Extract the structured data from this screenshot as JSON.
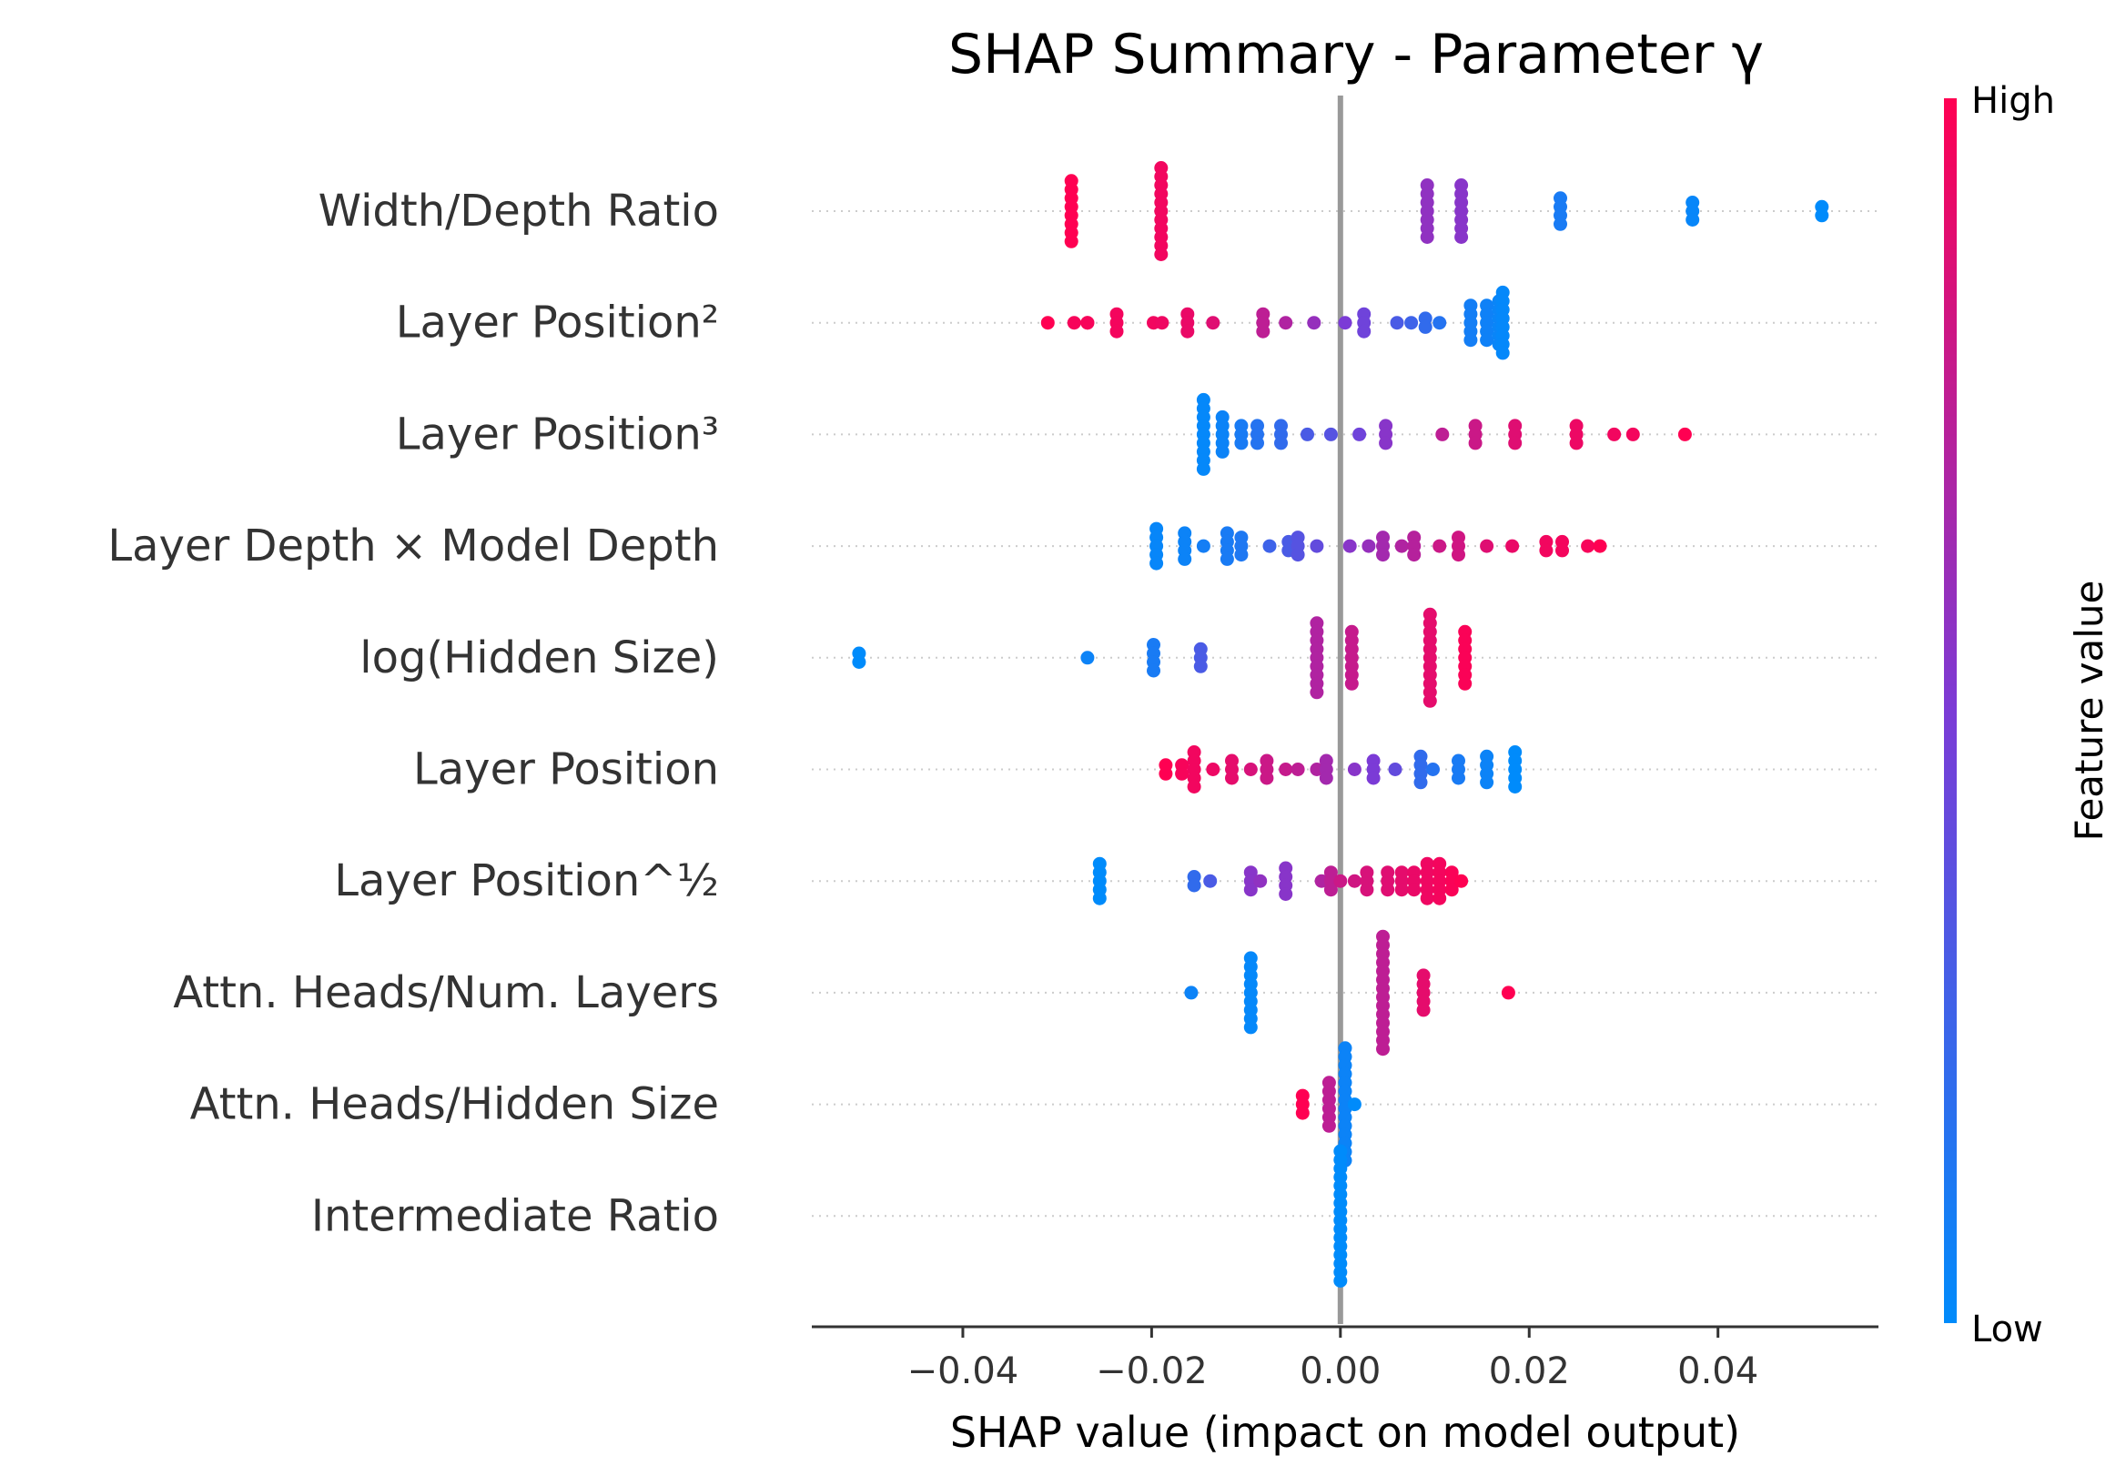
{
  "chart_data": {
    "type": "scatter",
    "title": "SHAP Summary - Parameter γ",
    "xlabel": "SHAP value (impact on model output)",
    "xlim": [
      -0.056,
      0.057
    ],
    "xticks": [
      {
        "value": -0.04,
        "label": "−0.04"
      },
      {
        "value": -0.02,
        "label": "−0.02"
      },
      {
        "value": 0.0,
        "label": "0.00"
      },
      {
        "value": 0.02,
        "label": "0.02"
      },
      {
        "value": 0.04,
        "label": "0.04"
      }
    ],
    "colorbar": {
      "label": "Feature value",
      "high": "High",
      "low": "Low",
      "color_low": "#008bfb",
      "color_high": "#ff0052"
    },
    "zero_line_color": "#999999",
    "features": [
      {
        "name": "Width/Depth Ratio",
        "points": [
          {
            "x": -0.0285,
            "v": 1.0,
            "n": 8
          },
          {
            "x": -0.019,
            "v": 0.95,
            "n": 11
          },
          {
            "x": 0.0092,
            "v": 0.58,
            "n": 7
          },
          {
            "x": 0.0128,
            "v": 0.55,
            "n": 7
          },
          {
            "x": 0.0233,
            "v": 0.1,
            "n": 4
          },
          {
            "x": 0.0373,
            "v": 0.03,
            "n": 3
          },
          {
            "x": 0.051,
            "v": 0.0,
            "n": 2
          }
        ]
      },
      {
        "name": "Layer Position²",
        "points": [
          {
            "x": -0.031,
            "v": 1.0
          },
          {
            "x": -0.0282,
            "v": 0.97
          },
          {
            "x": -0.0268,
            "v": 0.98
          },
          {
            "x": -0.0268,
            "v": 0.97
          },
          {
            "x": -0.0237,
            "v": 0.96,
            "n": 3
          },
          {
            "x": -0.0198,
            "v": 0.95
          },
          {
            "x": -0.0189,
            "v": 0.94
          },
          {
            "x": -0.0162,
            "v": 0.92,
            "n": 3
          },
          {
            "x": -0.0135,
            "v": 0.88
          },
          {
            "x": -0.0082,
            "v": 0.75,
            "n": 3
          },
          {
            "x": -0.0058,
            "v": 0.7
          },
          {
            "x": -0.0028,
            "v": 0.6
          },
          {
            "x": 0.0005,
            "v": 0.5
          },
          {
            "x": 0.0025,
            "v": 0.45,
            "n": 3
          },
          {
            "x": 0.006,
            "v": 0.3
          },
          {
            "x": 0.0075,
            "v": 0.25
          },
          {
            "x": 0.009,
            "v": 0.2,
            "n": 2
          },
          {
            "x": 0.0105,
            "v": 0.15
          },
          {
            "x": 0.0138,
            "v": 0.08,
            "n": 5
          },
          {
            "x": 0.0155,
            "v": 0.06,
            "n": 5
          },
          {
            "x": 0.0168,
            "v": 0.04,
            "n": 6
          },
          {
            "x": 0.0172,
            "v": 0.02,
            "n": 8
          }
        ]
      },
      {
        "name": "Layer Position³",
        "points": [
          {
            "x": -0.0145,
            "v": 0.02,
            "n": 9
          },
          {
            "x": -0.0125,
            "v": 0.05,
            "n": 5
          },
          {
            "x": -0.0105,
            "v": 0.1,
            "n": 3
          },
          {
            "x": -0.0088,
            "v": 0.15,
            "n": 3
          },
          {
            "x": -0.0063,
            "v": 0.2,
            "n": 3
          },
          {
            "x": -0.0035,
            "v": 0.3
          },
          {
            "x": -0.001,
            "v": 0.35
          },
          {
            "x": 0.002,
            "v": 0.45
          },
          {
            "x": 0.0048,
            "v": 0.55,
            "n": 3
          },
          {
            "x": 0.0108,
            "v": 0.75
          },
          {
            "x": 0.0143,
            "v": 0.8,
            "n": 3
          },
          {
            "x": 0.0185,
            "v": 0.88,
            "n": 3
          },
          {
            "x": 0.025,
            "v": 0.93,
            "n": 3
          },
          {
            "x": 0.029,
            "v": 0.95
          },
          {
            "x": 0.031,
            "v": 0.96
          },
          {
            "x": 0.0365,
            "v": 1.0
          }
        ]
      },
      {
        "name": "Layer Depth × Model Depth",
        "points": [
          {
            "x": -0.0195,
            "v": 0.03,
            "n": 5
          },
          {
            "x": -0.0165,
            "v": 0.05,
            "n": 4
          },
          {
            "x": -0.0145,
            "v": 0.08
          },
          {
            "x": -0.012,
            "v": 0.1,
            "n": 4
          },
          {
            "x": -0.0105,
            "v": 0.12,
            "n": 3
          },
          {
            "x": -0.0075,
            "v": 0.25
          },
          {
            "x": -0.0055,
            "v": 0.3,
            "n": 2
          },
          {
            "x": -0.0045,
            "v": 0.35,
            "n": 3
          },
          {
            "x": -0.0025,
            "v": 0.4
          },
          {
            "x": 0.001,
            "v": 0.55
          },
          {
            "x": 0.003,
            "v": 0.6
          },
          {
            "x": 0.0045,
            "v": 0.65,
            "n": 3
          },
          {
            "x": 0.0065,
            "v": 0.7
          },
          {
            "x": 0.0078,
            "v": 0.72,
            "n": 3
          },
          {
            "x": 0.0105,
            "v": 0.8
          },
          {
            "x": 0.0125,
            "v": 0.82,
            "n": 3
          },
          {
            "x": 0.0155,
            "v": 0.88
          },
          {
            "x": 0.0182,
            "v": 0.92
          },
          {
            "x": 0.0218,
            "v": 0.95,
            "n": 2
          },
          {
            "x": 0.0235,
            "v": 0.96,
            "n": 2
          },
          {
            "x": 0.0262,
            "v": 0.97
          },
          {
            "x": 0.0275,
            "v": 1.0
          }
        ]
      },
      {
        "name": "log(Hidden Size)",
        "points": [
          {
            "x": -0.051,
            "v": 0.0,
            "n": 2
          },
          {
            "x": -0.0268,
            "v": 0.05
          },
          {
            "x": -0.0198,
            "v": 0.1,
            "n": 4
          },
          {
            "x": -0.0148,
            "v": 0.3,
            "n": 3
          },
          {
            "x": -0.0025,
            "v": 0.7,
            "n": 9
          },
          {
            "x": 0.0012,
            "v": 0.78,
            "n": 7
          },
          {
            "x": 0.0095,
            "v": 0.9,
            "n": 11
          },
          {
            "x": 0.0132,
            "v": 0.98,
            "n": 7
          }
        ]
      },
      {
        "name": "Layer Position",
        "points": [
          {
            "x": -0.0185,
            "v": 1.0,
            "n": 2
          },
          {
            "x": -0.0168,
            "v": 0.97,
            "n": 2
          },
          {
            "x": -0.0155,
            "v": 0.95,
            "n": 5
          },
          {
            "x": -0.0135,
            "v": 0.93
          },
          {
            "x": -0.0115,
            "v": 0.9,
            "n": 3
          },
          {
            "x": -0.0095,
            "v": 0.85
          },
          {
            "x": -0.0078,
            "v": 0.8,
            "n": 3
          },
          {
            "x": -0.0058,
            "v": 0.78
          },
          {
            "x": -0.0045,
            "v": 0.75
          },
          {
            "x": -0.0025,
            "v": 0.7
          },
          {
            "x": -0.0015,
            "v": 0.65,
            "n": 3
          },
          {
            "x": 0.0015,
            "v": 0.55
          },
          {
            "x": 0.0035,
            "v": 0.5,
            "n": 3
          },
          {
            "x": 0.0058,
            "v": 0.4
          },
          {
            "x": 0.0085,
            "v": 0.2,
            "n": 4
          },
          {
            "x": 0.0098,
            "v": 0.15
          },
          {
            "x": 0.0125,
            "v": 0.1,
            "n": 3
          },
          {
            "x": 0.0155,
            "v": 0.05,
            "n": 4
          },
          {
            "x": 0.0185,
            "v": 0.0,
            "n": 5
          }
        ]
      },
      {
        "name": "Layer Position^½",
        "points": [
          {
            "x": -0.0255,
            "v": 0.0,
            "n": 5
          },
          {
            "x": -0.0155,
            "v": 0.2,
            "n": 2
          },
          {
            "x": -0.0138,
            "v": 0.3
          },
          {
            "x": -0.0095,
            "v": 0.55,
            "n": 3
          },
          {
            "x": -0.0085,
            "v": 0.58
          },
          {
            "x": -0.0058,
            "v": 0.55,
            "n": 4
          },
          {
            "x": -0.002,
            "v": 0.7
          },
          {
            "x": -0.001,
            "v": 0.75,
            "n": 3
          },
          {
            "x": 0.0,
            "v": 0.8
          },
          {
            "x": 0.0015,
            "v": 0.82
          },
          {
            "x": 0.0028,
            "v": 0.85,
            "n": 3
          },
          {
            "x": 0.005,
            "v": 0.88,
            "n": 3
          },
          {
            "x": 0.0065,
            "v": 0.9,
            "n": 3
          },
          {
            "x": 0.0078,
            "v": 0.92,
            "n": 3
          },
          {
            "x": 0.0092,
            "v": 0.94,
            "n": 5
          },
          {
            "x": 0.0105,
            "v": 0.96,
            "n": 5
          },
          {
            "x": 0.0118,
            "v": 0.98,
            "n": 3
          },
          {
            "x": 0.0128,
            "v": 1.0
          }
        ]
      },
      {
        "name": "Attn. Heads/Num. Layers",
        "points": [
          {
            "x": -0.0158,
            "v": 0.05
          },
          {
            "x": -0.0095,
            "v": 0.02,
            "n": 9
          },
          {
            "x": 0.0045,
            "v": 0.75,
            "n": 14
          },
          {
            "x": 0.0088,
            "v": 0.9,
            "n": 5
          },
          {
            "x": 0.0178,
            "v": 1.0
          }
        ]
      },
      {
        "name": "Attn. Heads/Hidden Size",
        "points": [
          {
            "x": -0.004,
            "v": 1.0,
            "n": 3
          },
          {
            "x": -0.0012,
            "v": 0.75,
            "n": 6
          },
          {
            "x": 0.0005,
            "v": 0.05,
            "n": 14
          },
          {
            "x": 0.0015,
            "v": 0.0
          }
        ]
      },
      {
        "name": "Intermediate Ratio",
        "points": [
          {
            "x": 0.0,
            "v": 0.0,
            "n": 16
          }
        ]
      }
    ]
  }
}
